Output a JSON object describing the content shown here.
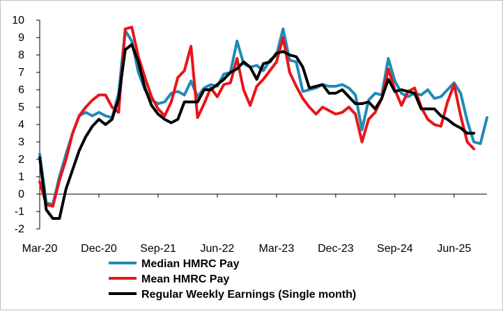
{
  "chart_data": {
    "type": "line",
    "title": "",
    "xlabel": "",
    "ylabel": "",
    "ylim": [
      -2,
      10
    ],
    "yticks": [
      -2,
      -1,
      0,
      1,
      2,
      3,
      4,
      5,
      6,
      7,
      8,
      9,
      10
    ],
    "ytick_labels": [
      "-2",
      "-1",
      "0",
      "1",
      "2",
      "3",
      "4",
      "5",
      "6",
      "7",
      "8",
      "9",
      "10"
    ],
    "x_start": "Mar-20",
    "x_count": 69,
    "xtick_positions": [
      0,
      9,
      18,
      27,
      36,
      45,
      54,
      63
    ],
    "xtick_labels": [
      "Mar-20",
      "Dec-20",
      "Sep-21",
      "Jun-22",
      "Mar-23",
      "Dec-23",
      "Sep-24",
      "Jun-25"
    ],
    "legend_position": "bottom",
    "series": [
      {
        "name": "Median HMRC Pay",
        "color": "#1f8bb5",
        "values": [
          2.3,
          -0.5,
          -0.6,
          1.0,
          2.3,
          3.5,
          4.5,
          4.7,
          4.5,
          4.7,
          4.5,
          4.4,
          5.8,
          9.4,
          8.8,
          7.0,
          6.0,
          5.4,
          5.2,
          5.3,
          5.8,
          5.9,
          5.7,
          6.5,
          5.6,
          6.1,
          6.3,
          6.2,
          6.9,
          7.0,
          8.8,
          7.5,
          7.3,
          7.4,
          7.1,
          7.7,
          8.0,
          9.5,
          7.7,
          7.6,
          5.9,
          6.0,
          6.1,
          6.3,
          6.2,
          6.2,
          6.3,
          6.1,
          5.7,
          3.7,
          5.4,
          5.8,
          5.7,
          7.8,
          6.5,
          5.8,
          5.6,
          5.8,
          5.7,
          6.0,
          5.5,
          5.6,
          6.0,
          6.4,
          5.8,
          4.2,
          3.0,
          2.9,
          4.4
        ]
      },
      {
        "name": "Mean HMRC Pay",
        "color": "#e8151b",
        "values": [
          0.7,
          -0.6,
          -0.7,
          0.8,
          2.0,
          3.5,
          4.5,
          5.0,
          5.4,
          5.7,
          5.7,
          5.0,
          4.7,
          9.5,
          9.6,
          7.9,
          6.7,
          5.6,
          4.9,
          4.5,
          5.3,
          6.7,
          7.1,
          8.5,
          4.4,
          5.2,
          6.1,
          5.6,
          6.3,
          6.4,
          7.8,
          6.0,
          5.1,
          6.2,
          6.6,
          7.1,
          7.6,
          9.0,
          7.0,
          6.2,
          5.5,
          5.0,
          4.6,
          5.0,
          4.8,
          4.6,
          4.7,
          5.0,
          4.6,
          3.0,
          4.3,
          4.7,
          5.5,
          7.2,
          6.0,
          5.1,
          5.9,
          6.1,
          5.0,
          4.3,
          4.0,
          3.9,
          5.3,
          6.3,
          4.5,
          3.0,
          2.6
        ]
      },
      {
        "name": "Regular Weekly Earnings (Single month)",
        "color": "#000000",
        "values": [
          2.1,
          -0.9,
          -1.4,
          -1.4,
          0.3,
          1.4,
          2.5,
          3.3,
          3.9,
          4.3,
          4.0,
          4.3,
          5.5,
          8.3,
          8.6,
          7.6,
          6.1,
          5.1,
          4.6,
          4.3,
          4.1,
          4.3,
          5.3,
          5.3,
          5.3,
          6.0,
          6.0,
          6.3,
          6.6,
          7.0,
          7.2,
          7.6,
          7.3,
          6.6,
          7.5,
          7.6,
          8.1,
          8.2,
          8.0,
          7.9,
          7.3,
          6.1,
          6.2,
          6.3,
          5.8,
          5.8,
          6.0,
          5.6,
          5.2,
          5.2,
          5.3,
          4.9,
          5.5,
          6.6,
          5.9,
          6.0,
          5.9,
          5.8,
          4.9,
          4.9,
          4.9,
          4.5,
          4.3,
          4.0,
          3.8,
          3.5,
          3.5
        ]
      }
    ]
  }
}
